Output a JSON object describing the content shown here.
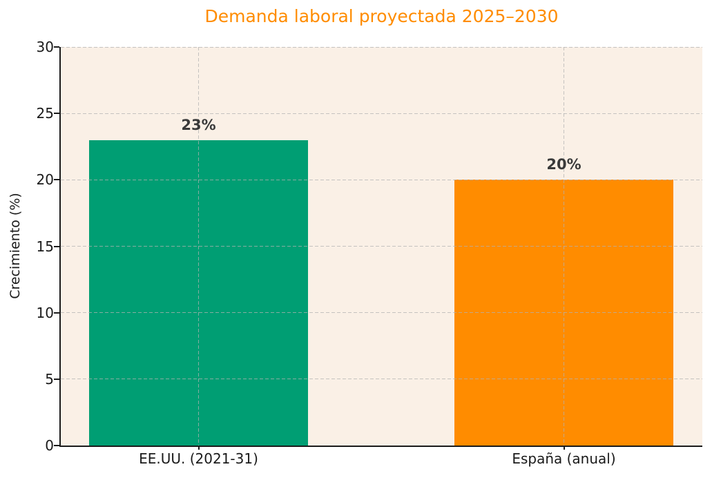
{
  "chart_data": {
    "type": "bar",
    "title": "Demanda laboral proyectada 2025–2030",
    "title_color": "#FF8C00",
    "categories": [
      "EE.UU. (2021-31)",
      "España (anual)"
    ],
    "values": [
      23,
      20
    ],
    "bar_labels": [
      "23%",
      "20%"
    ],
    "bar_colors": [
      "#009E73",
      "#FF8C00"
    ],
    "xlabel": "",
    "ylabel": "Crecimiento (%)",
    "ylim": [
      0,
      30
    ],
    "yticks": [
      0,
      5,
      10,
      15,
      20,
      25,
      30
    ],
    "ytick_labels": [
      "0",
      "5",
      "10",
      "15",
      "20",
      "25",
      "30"
    ],
    "grid": "dashed",
    "grid_color": "#b2b2b2",
    "plot_background": "#FAF0E6",
    "figure_background": "#ffffff",
    "value_label_color": "#3a3a3a",
    "axis_color": "#1a1a1a",
    "legend": "none"
  }
}
